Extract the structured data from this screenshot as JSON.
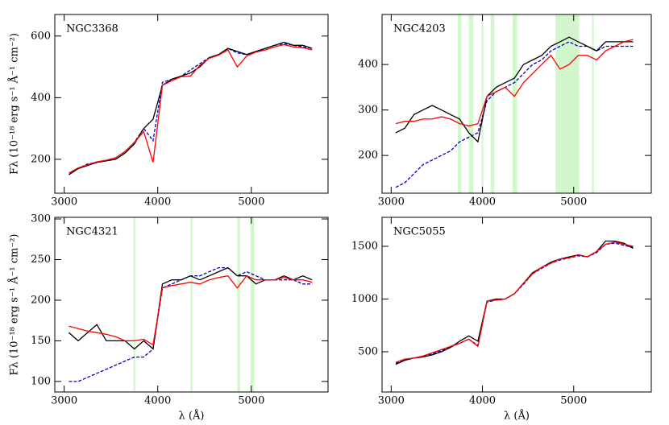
{
  "chart_data": [
    {
      "type": "line",
      "title": "NGC3368",
      "ylabel": "Fλ (10⁻¹⁸ erg s⁻¹ Å⁻¹ cm⁻²)",
      "x": [
        3050,
        3150,
        3250,
        3350,
        3450,
        3550,
        3650,
        3750,
        3850,
        3950,
        4050,
        4150,
        4250,
        4350,
        4450,
        4550,
        4650,
        4750,
        4850,
        4950,
        5050,
        5150,
        5250,
        5350,
        5450,
        5550,
        5650
      ],
      "xlim": [
        2900,
        5820
      ],
      "xticks": [
        3000,
        4000,
        5000
      ],
      "ylim": [
        90,
        670
      ],
      "yticks": [
        200,
        400,
        600
      ],
      "series": [
        {
          "color": "#0000cc",
          "dash": true,
          "values": [
            150,
            170,
            185,
            190,
            195,
            205,
            225,
            255,
            300,
            260,
            450,
            460,
            470,
            490,
            510,
            530,
            540,
            560,
            545,
            540,
            550,
            560,
            570,
            575,
            570,
            565,
            560
          ]
        },
        {
          "color": "#000000",
          "values": [
            150,
            170,
            180,
            190,
            195,
            200,
            220,
            250,
            300,
            330,
            440,
            460,
            470,
            480,
            500,
            530,
            540,
            560,
            550,
            540,
            550,
            560,
            570,
            580,
            570,
            570,
            560
          ]
        },
        {
          "color": "#ff0000",
          "values": [
            155,
            172,
            182,
            192,
            197,
            205,
            225,
            255,
            290,
            190,
            440,
            455,
            468,
            470,
            505,
            528,
            538,
            555,
            500,
            535,
            548,
            555,
            565,
            572,
            565,
            562,
            555
          ]
        }
      ]
    },
    {
      "type": "line",
      "title": "NGC4203",
      "x": [
        3050,
        3150,
        3250,
        3350,
        3450,
        3550,
        3650,
        3750,
        3850,
        3950,
        4050,
        4150,
        4250,
        4350,
        4450,
        4550,
        4650,
        4750,
        4850,
        4950,
        5050,
        5150,
        5250,
        5350,
        5450,
        5550,
        5650
      ],
      "xlim": [
        2900,
        5850
      ],
      "xticks": [
        3000,
        4000,
        5000
      ],
      "ylim": [
        117,
        510
      ],
      "yticks": [
        200,
        300,
        400
      ],
      "masked_ranges": [
        [
          3730,
          3770
        ],
        [
          3850,
          3900
        ],
        [
          3990,
          4010
        ],
        [
          4090,
          4130
        ],
        [
          4330,
          4380
        ],
        [
          4800,
          5060
        ],
        [
          5200,
          5220
        ]
      ],
      "series": [
        {
          "color": "#0000cc",
          "dash": true,
          "values": [
            130,
            140,
            160,
            180,
            190,
            200,
            210,
            230,
            240,
            250,
            320,
            340,
            350,
            360,
            380,
            400,
            410,
            430,
            440,
            450,
            440,
            440,
            430,
            440,
            440,
            440,
            440
          ]
        },
        {
          "color": "#000000",
          "values": [
            250,
            260,
            290,
            300,
            310,
            300,
            290,
            280,
            250,
            230,
            330,
            350,
            360,
            370,
            400,
            410,
            420,
            440,
            450,
            460,
            450,
            440,
            430,
            450,
            450,
            450,
            450
          ]
        },
        {
          "color": "#ff0000",
          "values": [
            270,
            275,
            275,
            280,
            280,
            285,
            280,
            270,
            265,
            270,
            330,
            340,
            350,
            330,
            360,
            380,
            400,
            420,
            390,
            400,
            420,
            420,
            410,
            430,
            440,
            450,
            455
          ]
        }
      ]
    },
    {
      "type": "line",
      "title": "NGC4321",
      "ylabel": "Fλ (10⁻¹⁸ erg s⁻¹ Å⁻¹ cm⁻²)",
      "xlabel": "λ (Å)",
      "x": [
        3050,
        3150,
        3250,
        3350,
        3450,
        3550,
        3650,
        3750,
        3850,
        3950,
        4050,
        4150,
        4250,
        4350,
        4450,
        4550,
        4650,
        4750,
        4850,
        4950,
        5050,
        5150,
        5250,
        5350,
        5450,
        5550,
        5650
      ],
      "xlim": [
        2900,
        5820
      ],
      "xticks": [
        3000,
        4000,
        5000
      ],
      "ylim": [
        87,
        302
      ],
      "yticks": [
        100,
        150,
        200,
        250,
        300
      ],
      "masked_ranges": [
        [
          3740,
          3760
        ],
        [
          4350,
          4370
        ],
        [
          4850,
          4880
        ],
        [
          4990,
          5030
        ]
      ],
      "series": [
        {
          "color": "#0000cc",
          "dash": true,
          "values": [
            100,
            100,
            105,
            110,
            115,
            120,
            125,
            130,
            130,
            140,
            215,
            220,
            225,
            230,
            230,
            235,
            240,
            240,
            230,
            235,
            230,
            225,
            225,
            225,
            225,
            220,
            220
          ]
        },
        {
          "color": "#000000",
          "values": [
            160,
            150,
            160,
            170,
            150,
            150,
            150,
            140,
            150,
            140,
            220,
            225,
            225,
            230,
            225,
            230,
            235,
            240,
            230,
            230,
            220,
            225,
            225,
            230,
            225,
            230,
            225
          ]
        },
        {
          "color": "#ff0000",
          "values": [
            168,
            165,
            162,
            160,
            158,
            155,
            150,
            150,
            152,
            145,
            215,
            218,
            220,
            222,
            220,
            225,
            228,
            230,
            215,
            230,
            225,
            225,
            225,
            228,
            225,
            225,
            222
          ]
        }
      ]
    },
    {
      "type": "line",
      "title": "NGC5055",
      "xlabel": "λ (Å)",
      "x": [
        3050,
        3150,
        3250,
        3350,
        3450,
        3550,
        3650,
        3750,
        3850,
        3950,
        4050,
        4150,
        4250,
        4350,
        4450,
        4550,
        4650,
        4750,
        4850,
        4950,
        5050,
        5150,
        5250,
        5350,
        5450,
        5550,
        5650
      ],
      "xlim": [
        2900,
        5850
      ],
      "xticks": [
        3000,
        4000,
        5000
      ],
      "ylim": [
        118,
        1775
      ],
      "yticks": [
        500,
        1000,
        1500
      ],
      "series": [
        {
          "color": "#0000cc",
          "dash": true,
          "values": [
            390,
            420,
            440,
            455,
            480,
            510,
            545,
            580,
            620,
            560,
            970,
            990,
            1000,
            1050,
            1140,
            1240,
            1290,
            1340,
            1370,
            1390,
            1410,
            1400,
            1440,
            1520,
            1530,
            1510,
            1490
          ]
        },
        {
          "color": "#000000",
          "values": [
            380,
            420,
            440,
            450,
            470,
            500,
            540,
            600,
            650,
            600,
            980,
            1000,
            1000,
            1050,
            1150,
            1250,
            1300,
            1350,
            1380,
            1400,
            1420,
            1400,
            1450,
            1550,
            1550,
            1530,
            1480
          ]
        },
        {
          "color": "#ff0000",
          "values": [
            400,
            430,
            440,
            460,
            490,
            520,
            550,
            580,
            620,
            550,
            980,
            990,
            1000,
            1050,
            1150,
            1240,
            1300,
            1340,
            1380,
            1390,
            1420,
            1400,
            1450,
            1520,
            1540,
            1520,
            1500
          ]
        }
      ]
    }
  ]
}
